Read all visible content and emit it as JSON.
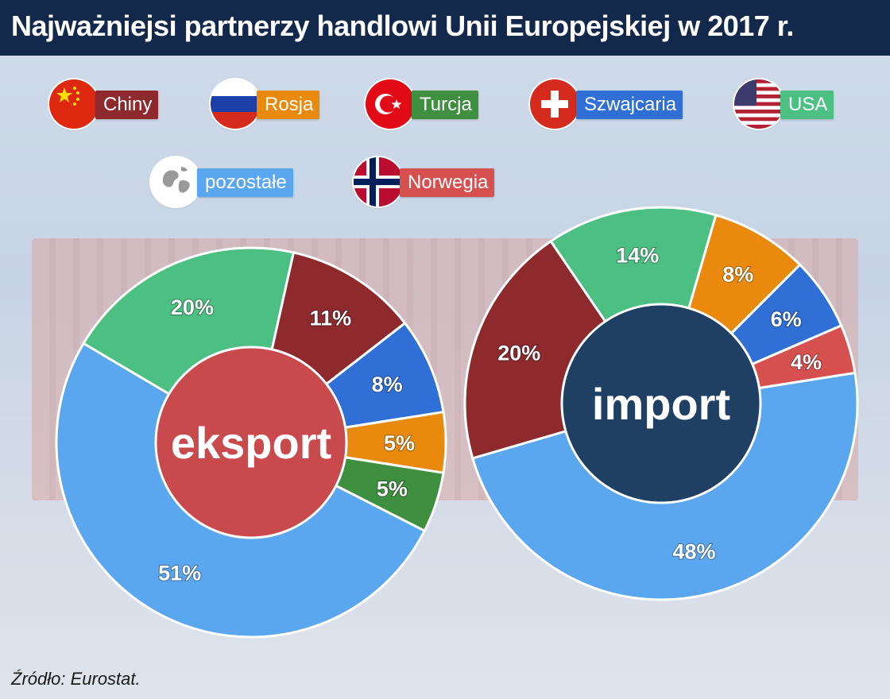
{
  "header": {
    "title": "Najważniejsi partnerzy handlowi Unii Europejskiej w 2017 r."
  },
  "legend": [
    {
      "label": "Chiny",
      "color": "#8e2a2e",
      "icon": "china-flag-icon"
    },
    {
      "label": "Rosja",
      "color": "#e98a0f",
      "icon": "russia-flag-icon"
    },
    {
      "label": "Turcja",
      "color": "#3e8f3f",
      "icon": "turkey-flag-icon"
    },
    {
      "label": "Szwajcaria",
      "color": "#2f6fd6",
      "icon": "switzerland-flag-icon"
    },
    {
      "label": "USA",
      "color": "#4cbf83",
      "icon": "usa-flag-icon"
    },
    {
      "label": "pozostałe",
      "color": "#5aa7ef",
      "icon": "globe-icon"
    },
    {
      "label": "Norwegia",
      "color": "#d65050",
      "icon": "norway-flag-icon"
    }
  ],
  "chart_data": [
    {
      "type": "pie",
      "center_label": "eksport",
      "center_color": "#c84a4c",
      "slices": [
        {
          "category": "pozostałe",
          "value": 51,
          "label": "51%",
          "color": "#5aa7ef"
        },
        {
          "category": "USA",
          "value": 20,
          "label": "20%",
          "color": "#4cbf83"
        },
        {
          "category": "Chiny",
          "value": 11,
          "label": "11%",
          "color": "#8e2a2e"
        },
        {
          "category": "Szwajcaria",
          "value": 8,
          "label": "8%",
          "color": "#2f6fd6"
        },
        {
          "category": "Rosja",
          "value": 5,
          "label": "5%",
          "color": "#e98a0f"
        },
        {
          "category": "Turcja",
          "value": 5,
          "label": "5%",
          "color": "#3e8f3f"
        }
      ]
    },
    {
      "type": "pie",
      "center_label": "import",
      "center_color": "#1f3f63",
      "slices": [
        {
          "category": "pozostałe",
          "value": 48,
          "label": "48%",
          "color": "#5aa7ef"
        },
        {
          "category": "Chiny",
          "value": 20,
          "label": "20%",
          "color": "#8e2a2e"
        },
        {
          "category": "USA",
          "value": 14,
          "label": "14%",
          "color": "#4cbf83"
        },
        {
          "category": "Rosja",
          "value": 8,
          "label": "8%",
          "color": "#e98a0f"
        },
        {
          "category": "Szwajcaria",
          "value": 6,
          "label": "6%",
          "color": "#2f6fd6"
        },
        {
          "category": "Norwegia",
          "value": 4,
          "label": "4%",
          "color": "#d65050"
        }
      ]
    }
  ],
  "source": "Źródło: Eurostat."
}
